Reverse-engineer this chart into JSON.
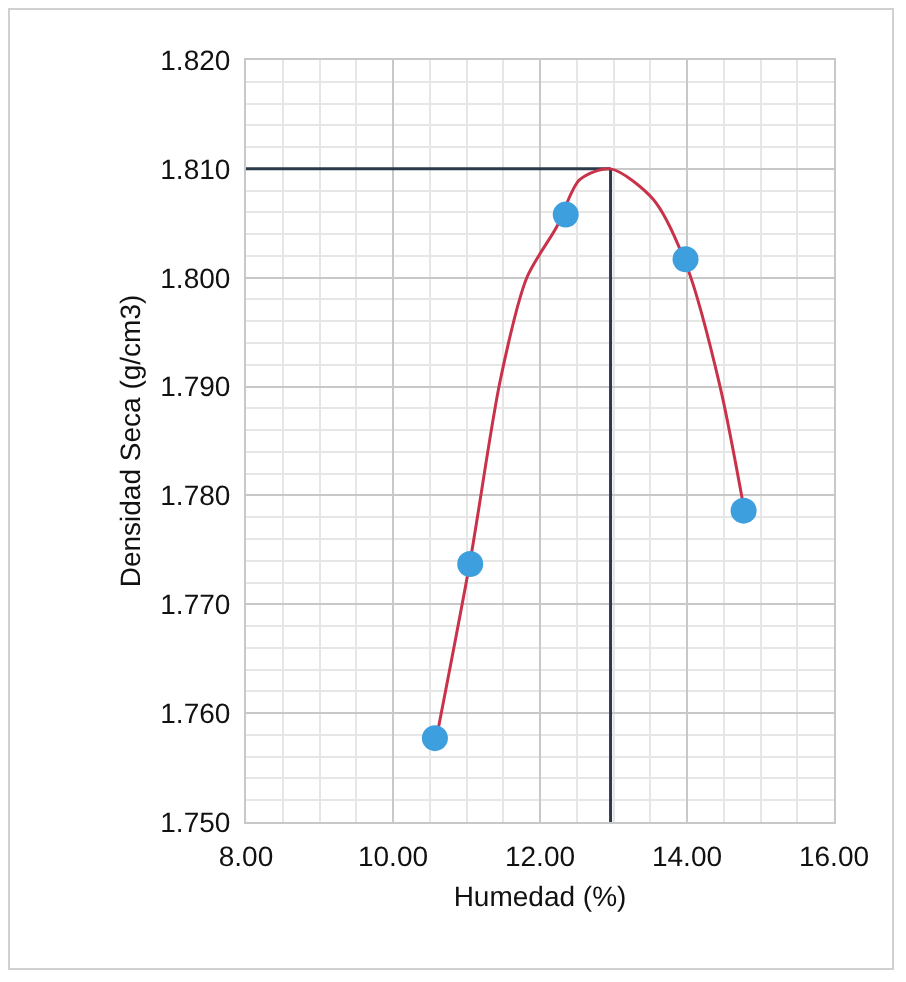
{
  "chart_data": {
    "type": "scatter",
    "xlabel": "Humedad (%)",
    "ylabel": "Densidad Seca (g/cm3)",
    "xlim": [
      8,
      16
    ],
    "ylim": [
      1.75,
      1.82
    ],
    "xticks": [
      {
        "value": 8,
        "label": "8.00"
      },
      {
        "value": 10,
        "label": "10.00"
      },
      {
        "value": 12,
        "label": "12.00"
      },
      {
        "value": 14,
        "label": "14.00"
      },
      {
        "value": 16,
        "label": "16.00"
      }
    ],
    "yticks": [
      {
        "value": 1.75,
        "label": "1.750"
      },
      {
        "value": 1.76,
        "label": "1.760"
      },
      {
        "value": 1.77,
        "label": "1.770"
      },
      {
        "value": 1.78,
        "label": "1.780"
      },
      {
        "value": 1.79,
        "label": "1.790"
      },
      {
        "value": 1.8,
        "label": "1.800"
      },
      {
        "value": 1.81,
        "label": "1.810"
      },
      {
        "value": 1.82,
        "label": "1.820"
      }
    ],
    "grid": true,
    "series": [
      {
        "type": "line",
        "color": "#2b3a4a",
        "x": [
          8,
          12.96
        ],
        "values": [
          1.81,
          1.81
        ],
        "marker": "none"
      },
      {
        "type": "line",
        "color": "#2b3a4a",
        "x": [
          12.96,
          12.96
        ],
        "values": [
          1.81,
          1.75
        ],
        "marker": "none"
      },
      {
        "type": "line",
        "color": "#c8324a",
        "x": [
          10.57,
          11.05,
          11.46,
          11.82,
          12.23,
          12.54,
          12.96,
          13.54,
          14.0,
          14.45,
          14.77
        ],
        "values": [
          1.757,
          1.774,
          1.7906,
          1.8,
          1.8047,
          1.809,
          1.81,
          1.8072,
          1.801,
          1.79,
          1.779
        ],
        "marker": "none"
      },
      {
        "color": "#3d9fde",
        "x": [
          10.57,
          11.05,
          12.35,
          13.98,
          14.77
        ],
        "values": [
          1.7577,
          1.7737,
          1.8058,
          1.8017,
          1.7786
        ],
        "marker": "circle"
      }
    ]
  }
}
